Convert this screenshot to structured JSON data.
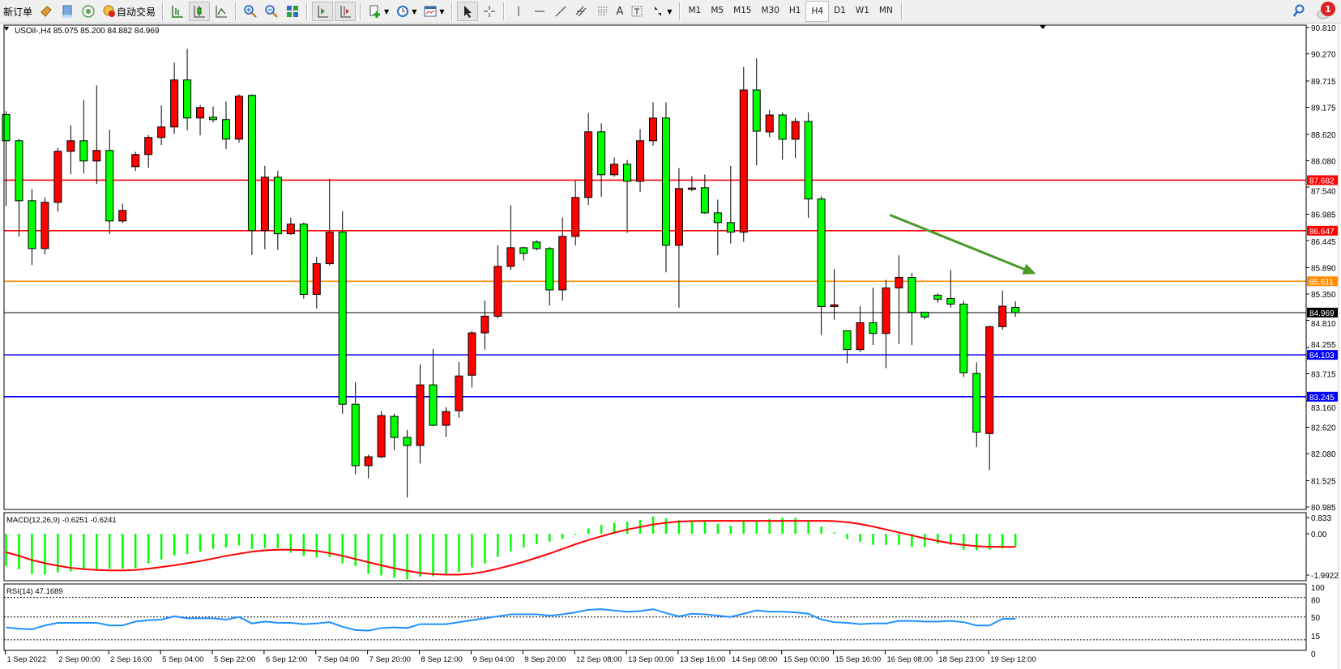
{
  "toolbar": {
    "new_order_label": "新订单",
    "auto_trading_label": "自动交易",
    "timeframes": [
      "M1",
      "M5",
      "M15",
      "M30",
      "H1",
      "H4",
      "D1",
      "W1",
      "MN"
    ],
    "active_timeframe": "H4",
    "notification_count": "1",
    "icons": [
      "book-icon",
      "server-icon",
      "signal-icon",
      "auto-trading-icon",
      "bar-chart-icon",
      "candlestick-icon",
      "line-chart-icon",
      "zoom-in-icon",
      "zoom-out-icon",
      "tile-windows-icon",
      "auto-scroll-icon",
      "chart-shift-icon",
      "indicators-icon",
      "periods-icon",
      "templates-icon",
      "cursor-icon",
      "crosshair-icon",
      "vertical-line-icon",
      "horizontal-line-icon",
      "trendline-icon",
      "channel-icon",
      "fibonacci-icon",
      "text-icon",
      "text-label-icon",
      "arrows-icon",
      "search-icon",
      "notification-icon"
    ]
  },
  "chart": {
    "header": "USOil-,H4  85.075 85.200 84.882 84.969",
    "macd_label": "MACD(12,26,9) -0.6251 -0.6241",
    "rsi_label": "RSI(14) 47.1689"
  },
  "chart_data": {
    "type": "candlestick",
    "symbol": "USOil-",
    "timeframe": "H4",
    "ohlc_order": [
      "open",
      "high",
      "low",
      "close"
    ],
    "up_color": "#ff0000",
    "down_color": "#00ff00",
    "ylim": [
      80.985,
      90.81
    ],
    "price_ticks": [
      "90.810",
      "90.270",
      "89.715",
      "89.175",
      "88.620",
      "88.080",
      "87.540",
      "86.985",
      "86.445",
      "85.890",
      "85.350",
      "84.810",
      "84.255",
      "83.715",
      "83.160",
      "82.620",
      "82.080",
      "81.525",
      "80.985"
    ],
    "time_labels": [
      {
        "bar": 0,
        "label": "1 Sep 2022"
      },
      {
        "bar": 4,
        "label": "2 Sep 00:00"
      },
      {
        "bar": 8,
        "label": "2 Sep 16:00"
      },
      {
        "bar": 12,
        "label": "5 Sep 04:00"
      },
      {
        "bar": 16,
        "label": "5 Sep 22:00"
      },
      {
        "bar": 20,
        "label": "6 Sep 12:00"
      },
      {
        "bar": 24,
        "label": "7 Sep 04:00"
      },
      {
        "bar": 28,
        "label": "7 Sep 20:00"
      },
      {
        "bar": 32,
        "label": "8 Sep 12:00"
      },
      {
        "bar": 36,
        "label": "9 Sep 04:00"
      },
      {
        "bar": 40,
        "label": "9 Sep 20:00"
      },
      {
        "bar": 44,
        "label": "12 Sep 08:00"
      },
      {
        "bar": 48,
        "label": "13 Sep 00:00"
      },
      {
        "bar": 52,
        "label": "13 Sep 16:00"
      },
      {
        "bar": 56,
        "label": "14 Sep 08:00"
      },
      {
        "bar": 60,
        "label": "15 Sep 00:00"
      },
      {
        "bar": 64,
        "label": "15 Sep 16:00"
      },
      {
        "bar": 68,
        "label": "16 Sep 08:00"
      },
      {
        "bar": 72,
        "label": "18 Sep 23:00"
      },
      {
        "bar": 76,
        "label": "19 Sep 12:00"
      }
    ],
    "candles": [
      [
        89.027,
        89.094,
        87.15,
        88.49
      ],
      [
        88.49,
        88.529,
        86.525,
        87.261
      ],
      [
        87.261,
        87.499,
        85.943,
        86.281
      ],
      [
        86.281,
        87.333,
        86.159,
        87.228
      ],
      [
        87.228,
        88.341,
        87.04,
        88.274
      ],
      [
        88.274,
        88.806,
        87.804,
        88.49
      ],
      [
        88.49,
        89.326,
        87.82,
        88.075
      ],
      [
        88.075,
        89.625,
        87.604,
        88.291
      ],
      [
        88.291,
        88.712,
        86.575,
        86.846
      ],
      [
        86.846,
        87.2,
        86.807,
        87.062
      ],
      [
        87.959,
        88.263,
        87.87,
        88.208
      ],
      [
        88.208,
        88.607,
        87.937,
        88.557
      ],
      [
        88.557,
        89.21,
        88.402,
        88.773
      ],
      [
        88.773,
        90.09,
        88.634,
        89.736
      ],
      [
        89.736,
        90.373,
        88.701,
        88.956
      ],
      [
        88.956,
        89.221,
        88.601,
        89.171
      ],
      [
        88.972,
        89.193,
        88.867,
        88.922
      ],
      [
        88.922,
        89.293,
        88.319,
        88.524
      ],
      [
        88.524,
        89.442,
        88.452,
        89.404
      ],
      [
        89.42,
        89.44,
        86.148,
        86.65
      ],
      [
        86.65,
        87.975,
        86.264,
        87.743
      ],
      [
        87.743,
        87.875,
        86.253,
        86.584
      ],
      [
        86.584,
        86.915,
        86.562,
        86.782
      ],
      [
        86.782,
        86.815,
        85.254,
        85.342
      ],
      [
        85.342,
        86.109,
        85.049,
        85.971
      ],
      [
        85.971,
        87.71,
        85.933,
        86.617
      ],
      [
        86.617,
        87.047,
        82.897,
        83.09
      ],
      [
        83.09,
        83.543,
        81.655,
        81.832
      ],
      [
        81.832,
        82.058,
        81.573,
        82.014
      ],
      [
        82.014,
        82.952,
        81.99,
        82.858
      ],
      [
        82.842,
        82.897,
        82.152,
        82.411
      ],
      [
        82.411,
        82.566,
        81.18,
        82.246
      ],
      [
        82.246,
        83.907,
        81.876,
        83.488
      ],
      [
        83.488,
        84.222,
        82.64,
        82.66
      ],
      [
        82.66,
        83.03,
        82.422,
        82.941
      ],
      [
        82.958,
        83.957,
        82.814,
        83.67
      ],
      [
        83.686,
        84.597,
        83.432,
        84.553
      ],
      [
        84.553,
        85.215,
        84.211,
        84.895
      ],
      [
        84.895,
        86.353,
        84.85,
        85.916
      ],
      [
        85.916,
        87.167,
        85.844,
        86.298
      ],
      [
        86.298,
        86.314,
        86.038,
        86.182
      ],
      [
        86.414,
        86.453,
        86.242,
        86.281
      ],
      [
        86.281,
        86.314,
        85.113,
        85.434
      ],
      [
        85.434,
        86.918,
        85.213,
        86.53
      ],
      [
        86.53,
        87.671,
        86.342,
        87.328
      ],
      [
        87.328,
        89.061,
        87.173,
        88.673
      ],
      [
        88.673,
        88.845,
        87.339,
        87.793
      ],
      [
        87.793,
        88.147,
        87.754,
        88.009
      ],
      [
        88.009,
        88.097,
        86.602,
        87.66
      ],
      [
        87.66,
        88.728,
        87.438,
        88.49
      ],
      [
        88.49,
        89.277,
        88.391,
        88.955
      ],
      [
        88.955,
        89.277,
        85.794,
        86.348
      ],
      [
        86.348,
        87.931,
        85.07,
        87.51
      ],
      [
        87.494,
        87.765,
        87.455,
        87.521
      ],
      [
        87.527,
        87.798,
        86.99,
        87.012
      ],
      [
        87.012,
        87.283,
        86.143,
        86.813
      ],
      [
        86.813,
        87.975,
        86.385,
        86.617
      ],
      [
        86.617,
        90.0,
        86.418,
        89.531
      ],
      [
        89.531,
        90.18,
        87.986,
        88.686
      ],
      [
        88.67,
        89.122,
        88.565,
        89.018
      ],
      [
        89.018,
        89.073,
        88.101,
        88.521
      ],
      [
        88.521,
        88.957,
        88.135,
        88.885
      ],
      [
        88.885,
        89.073,
        86.909,
        87.296
      ],
      [
        87.296,
        87.351,
        84.509,
        85.094
      ],
      [
        85.094,
        85.861,
        84.823,
        85.127
      ],
      [
        84.597,
        84.597,
        83.929,
        84.211
      ],
      [
        84.211,
        85.099,
        84.161,
        84.762
      ],
      [
        84.762,
        85.48,
        84.304,
        84.542
      ],
      [
        84.542,
        85.64,
        83.83,
        85.474
      ],
      [
        85.474,
        86.142,
        84.326,
        85.69
      ],
      [
        85.69,
        85.778,
        84.304,
        84.972
      ],
      [
        84.978,
        84.978,
        84.834,
        84.878
      ],
      [
        85.325,
        85.364,
        85.171,
        85.243
      ],
      [
        85.259,
        85.844,
        85.072,
        85.143
      ],
      [
        85.143,
        85.209,
        83.648,
        83.736
      ],
      [
        83.72,
        83.95,
        82.21,
        82.52
      ],
      [
        82.49,
        84.7,
        81.74,
        84.68
      ],
      [
        84.68,
        85.42,
        84.62,
        85.1
      ],
      [
        85.075,
        85.2,
        84.882,
        84.969
      ]
    ],
    "horizontal_lines": [
      {
        "price": 87.682,
        "label": "87.682",
        "color": "#ff0000"
      },
      {
        "price": 86.647,
        "label": "86.647",
        "color": "#ff0000"
      },
      {
        "price": 85.611,
        "label": "85.611",
        "color": "#ff8c00"
      },
      {
        "price": 84.969,
        "label": "84.969",
        "color": "#000000"
      },
      {
        "price": 84.103,
        "label": "84.103",
        "color": "#0000ff"
      },
      {
        "price": 83.245,
        "label": "83.245",
        "color": "#0000ff"
      }
    ],
    "trend_arrow": {
      "from": {
        "time": "16 Sep 08:00",
        "price": 86.97
      },
      "to": {
        "time": "20 Sep 04:00",
        "price": 85.76
      },
      "color": "#4a9a2a"
    },
    "macd": {
      "params": "12,26,9",
      "ticks": [
        "0.833",
        "0.00",
        "-1.9922"
      ],
      "ylim": [
        -1.9922,
        0.833
      ],
      "histogram_color": "#00ff00",
      "signal_color": "#ff0000",
      "histogram": [
        -1.54,
        -1.69,
        -1.91,
        -1.94,
        -1.85,
        -1.79,
        -1.72,
        -1.72,
        -1.66,
        -1.66,
        -1.64,
        -1.41,
        -1.22,
        -1.03,
        -0.97,
        -0.84,
        -0.72,
        -0.65,
        -0.55,
        -0.72,
        -0.68,
        -0.68,
        -0.91,
        -1.06,
        -1.13,
        -1.1,
        -1.41,
        -1.54,
        -1.91,
        -1.98,
        -2.1,
        -2.17,
        -2.04,
        -2.02,
        -1.91,
        -1.81,
        -1.6,
        -1.41,
        -1.1,
        -0.84,
        -0.65,
        -0.5,
        -0.38,
        -0.25,
        -0.05,
        0.25,
        0.42,
        0.52,
        0.57,
        0.65,
        0.82,
        0.73,
        0.64,
        0.6,
        0.6,
        0.48,
        0.38,
        0.6,
        0.6,
        0.7,
        0.76,
        0.76,
        0.6,
        0.35,
        0.06,
        -0.25,
        -0.38,
        -0.53,
        -0.53,
        -0.53,
        -0.63,
        -0.63,
        -0.47,
        -0.53,
        -0.76,
        -0.78,
        -0.76,
        -0.7,
        -0.6251
      ],
      "signal": [
        -0.88,
        -1.05,
        -1.25,
        -1.4,
        -1.52,
        -1.62,
        -1.68,
        -1.72,
        -1.74,
        -1.74,
        -1.72,
        -1.66,
        -1.58,
        -1.5,
        -1.4,
        -1.3,
        -1.18,
        -1.05,
        -0.95,
        -0.85,
        -0.79,
        -0.76,
        -0.76,
        -0.78,
        -0.82,
        -0.92,
        -1.05,
        -1.2,
        -1.35,
        -1.5,
        -1.64,
        -1.76,
        -1.86,
        -1.92,
        -1.94,
        -1.94,
        -1.9,
        -1.8,
        -1.66,
        -1.5,
        -1.33,
        -1.14,
        -0.94,
        -0.72,
        -0.5,
        -0.3,
        -0.12,
        0.05,
        0.2,
        0.32,
        0.44,
        0.52,
        0.58,
        0.6,
        0.61,
        0.61,
        0.61,
        0.61,
        0.61,
        0.61,
        0.61,
        0.61,
        0.61,
        0.61,
        0.6,
        0.55,
        0.46,
        0.34,
        0.2,
        0.06,
        -0.08,
        -0.22,
        -0.34,
        -0.45,
        -0.53,
        -0.59,
        -0.62,
        -0.62,
        -0.6241
      ]
    },
    "rsi": {
      "period": 14,
      "ticks": [
        "100",
        "80",
        "50",
        "15",
        "0"
      ],
      "levels": [
        80,
        50,
        15
      ],
      "ylim": [
        0,
        100
      ],
      "color": "#1e90ff",
      "values": [
        34,
        32,
        31,
        37,
        41,
        41,
        41,
        41,
        37,
        37,
        43,
        45,
        46,
        51,
        48,
        48,
        48,
        46,
        50,
        40,
        43,
        41,
        41,
        39,
        40,
        42,
        35,
        30,
        29,
        33,
        34,
        33,
        39,
        39,
        39,
        42,
        45,
        48,
        51,
        54,
        54,
        54,
        52,
        54,
        57,
        61,
        62,
        60,
        58,
        59,
        62,
        56,
        51,
        55,
        54,
        52,
        50,
        55,
        60,
        58,
        58,
        57,
        55,
        46,
        42,
        41,
        39,
        40,
        40,
        44,
        44,
        43,
        43,
        44,
        42,
        37,
        37,
        47,
        47.1689
      ]
    }
  }
}
